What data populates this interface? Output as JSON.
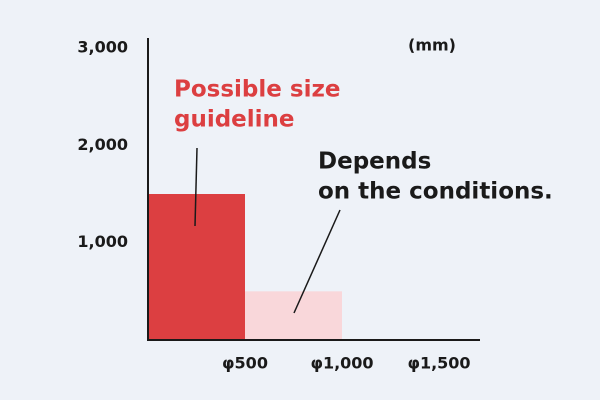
{
  "chart_data": {
    "type": "bar",
    "unit_label": "(mm)",
    "categories": [
      "φ500",
      "φ1,000",
      "φ1,500"
    ],
    "values": [
      1500,
      500,
      null
    ],
    "colors": [
      "#dc3f41",
      "#f9d7da",
      null
    ],
    "ylim": [
      0,
      3000
    ],
    "yticks": [
      {
        "value": 1000,
        "label": "1,000"
      },
      {
        "value": 2000,
        "label": "2,000"
      },
      {
        "value": 3000,
        "label": "3,000"
      }
    ],
    "grid": false,
    "annotations": [
      {
        "lines": [
          "Possible size",
          "guideline"
        ],
        "color": "#dc3f41"
      },
      {
        "lines": [
          "Depends",
          "on the conditions."
        ],
        "color": "#1a1a1a"
      }
    ]
  }
}
